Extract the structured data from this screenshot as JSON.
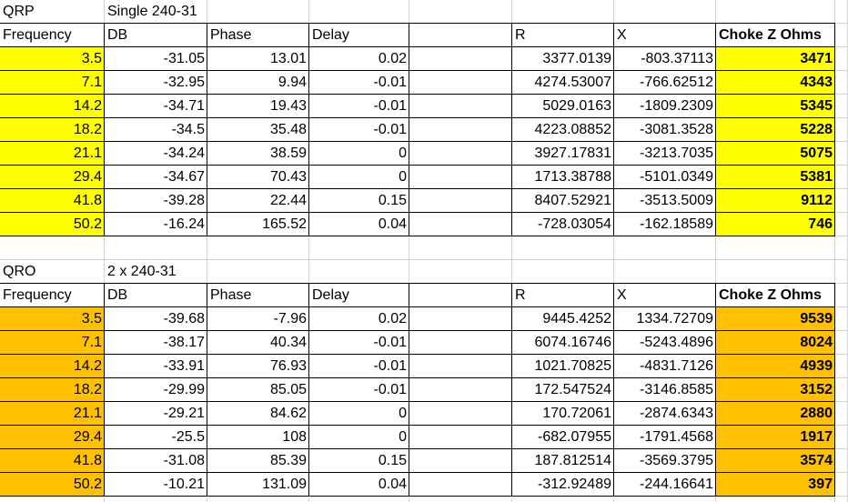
{
  "sections": [
    {
      "label": "QRP",
      "subtitle": "Single 240-31",
      "highlight": "#ffff00",
      "headers": [
        "Frequency",
        "DB",
        "Phase",
        "Delay",
        "R",
        "X",
        "Choke Z Ohms"
      ],
      "rows": [
        [
          "3.5",
          "-31.05",
          "13.01",
          "0.02",
          "3377.0139",
          "-803.37113",
          "3471"
        ],
        [
          "7.1",
          "-32.95",
          "9.94",
          "-0.01",
          "4274.53007",
          "-766.62512",
          "4343"
        ],
        [
          "14.2",
          "-34.71",
          "19.43",
          "-0.01",
          "5029.0163",
          "-1809.2309",
          "5345"
        ],
        [
          "18.2",
          "-34.5",
          "35.48",
          "-0.01",
          "4223.08852",
          "-3081.3528",
          "5228"
        ],
        [
          "21.1",
          "-34.24",
          "38.59",
          "0",
          "3927.17831",
          "-3213.7035",
          "5075"
        ],
        [
          "29.4",
          "-34.67",
          "70.43",
          "0",
          "1713.38788",
          "-5101.0349",
          "5381"
        ],
        [
          "41.8",
          "-39.28",
          "22.44",
          "0.15",
          "8407.52921",
          "-3513.5009",
          "9112"
        ],
        [
          "50.2",
          "-16.24",
          "165.52",
          "0.04",
          "-728.03054",
          "-162.18589",
          "746"
        ]
      ]
    },
    {
      "label": "QRO",
      "subtitle": "2 x 240-31",
      "highlight": "#ffc000",
      "headers": [
        "Frequency",
        "DB",
        "Phase",
        "Delay",
        "R",
        "X",
        "Choke Z Ohms"
      ],
      "rows": [
        [
          "3.5",
          "-39.68",
          "-7.96",
          "0.02",
          "9445.4252",
          "1334.72709",
          "9539"
        ],
        [
          "7.1",
          "-38.17",
          "40.34",
          "-0.01",
          "6074.16746",
          "-5243.4896",
          "8024"
        ],
        [
          "14.2",
          "-33.91",
          "76.93",
          "-0.01",
          "1021.70825",
          "-4831.7126",
          "4939"
        ],
        [
          "18.2",
          "-29.99",
          "85.05",
          "-0.01",
          "172.547524",
          "-3146.8585",
          "3152"
        ],
        [
          "21.1",
          "-29.21",
          "84.62",
          "0",
          "170.72061",
          "-2874.6343",
          "2880"
        ],
        [
          "29.4",
          "-25.5",
          "108",
          "0",
          "-682.07955",
          "-1791.4568",
          "1917"
        ],
        [
          "41.8",
          "-31.08",
          "85.39",
          "0.15",
          "187.812514",
          "-3569.3795",
          "3574"
        ],
        [
          "50.2",
          "-10.21",
          "131.09",
          "0.04",
          "-312.92489",
          "-244.16641",
          "397"
        ]
      ]
    }
  ]
}
